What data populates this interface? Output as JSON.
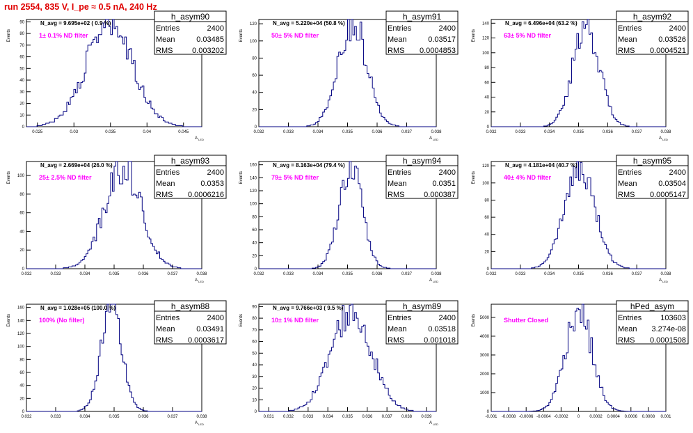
{
  "title": "run 2554,   835 V, I_pe ≈ 0.5 nA, 240 Hz",
  "colors": {
    "title": "#e00000",
    "histogram": "#000080",
    "filter_label": "#ff00ff"
  },
  "stat_labels": {
    "entries": "Entries",
    "mean": "Mean",
    "rms": "RMS"
  },
  "chart_data": [
    {
      "type": "histogram",
      "name": "h_asym90",
      "navg": "N_avg = 9.695e+02 ( 0.9 %)",
      "filter": "1± 0.1% ND filter",
      "stats": {
        "entries": "2400",
        "mean": "0.03485",
        "rms": "0.003202"
      },
      "xlabel": "A_LED",
      "ylabel": "Events",
      "xlim": [
        0.0235,
        0.0475
      ],
      "ylim": [
        0,
        92
      ],
      "xticks": [
        "0.025",
        "0.03",
        "0.035",
        "0.04",
        "0.045"
      ],
      "yticks": [
        "0",
        "10",
        "20",
        "30",
        "40",
        "50",
        "60",
        "70",
        "80",
        "90"
      ],
      "mu": 0.03485,
      "sigma": 0.0032,
      "peak": 88
    },
    {
      "type": "histogram",
      "name": "h_asym91",
      "navg": "N_avg = 5.220e+04 (50.8 %)",
      "filter": "50± 5% ND filter",
      "stats": {
        "entries": "2400",
        "mean": "0.03517",
        "rms": "0.0004853"
      },
      "xlabel": "A_LED",
      "ylabel": "Events",
      "xlim": [
        0.032,
        0.038
      ],
      "ylim": [
        0,
        125
      ],
      "xticks": [
        "0.032",
        "0.033",
        "0.034",
        "0.035",
        "0.036",
        "0.037",
        "0.038"
      ],
      "yticks": [
        "0",
        "20",
        "40",
        "60",
        "80",
        "100",
        "120"
      ],
      "mu": 0.03517,
      "sigma": 0.000485,
      "peak": 122
    },
    {
      "type": "histogram",
      "name": "h_asym92",
      "navg": "N_avg = 6.496e+04 (63.2 %)",
      "filter": "63± 5% ND filter",
      "stats": {
        "entries": "2400",
        "mean": "0.03526",
        "rms": "0.0004521"
      },
      "xlabel": "A_LED",
      "ylabel": "Events",
      "xlim": [
        0.032,
        0.038
      ],
      "ylim": [
        0,
        145
      ],
      "xticks": [
        "0.032",
        "0.033",
        "0.034",
        "0.035",
        "0.036",
        "0.037",
        "0.038"
      ],
      "yticks": [
        "0",
        "20",
        "40",
        "60",
        "80",
        "100",
        "120",
        "140"
      ],
      "mu": 0.03526,
      "sigma": 0.00045,
      "peak": 140
    },
    {
      "type": "histogram",
      "name": "h_asym93",
      "navg": "N_avg = 2.669e+04 (26.0 %)",
      "filter": "25± 2.5% ND filter",
      "stats": {
        "entries": "2400",
        "mean": "0.0353",
        "rms": "0.0006216"
      },
      "xlabel": "A_LED",
      "ylabel": "Events",
      "xlim": [
        0.032,
        0.038
      ],
      "ylim": [
        0,
        115
      ],
      "xticks": [
        "0.032",
        "0.033",
        "0.034",
        "0.035",
        "0.036",
        "0.037",
        "0.038"
      ],
      "yticks": [
        "0",
        "20",
        "40",
        "60",
        "80",
        "100"
      ],
      "mu": 0.0353,
      "sigma": 0.00062,
      "peak": 110
    },
    {
      "type": "histogram",
      "name": "h_asym94",
      "navg": "N_avg = 8.163e+04 (79.4 %)",
      "filter": "79± 5% ND filter",
      "stats": {
        "entries": "2400",
        "mean": "0.0351",
        "rms": "0.000387"
      },
      "xlabel": "A_LED",
      "ylabel": "Events",
      "xlim": [
        0.032,
        0.038
      ],
      "ylim": [
        0,
        165
      ],
      "xticks": [
        "0.032",
        "0.033",
        "0.034",
        "0.035",
        "0.036",
        "0.037",
        "0.038"
      ],
      "yticks": [
        "0",
        "20",
        "40",
        "60",
        "80",
        "100",
        "120",
        "140",
        "160"
      ],
      "mu": 0.0351,
      "sigma": 0.000387,
      "peak": 160
    },
    {
      "type": "histogram",
      "name": "h_asym95",
      "navg": "N_avg = 4.181e+04 (40.7 %)",
      "filter": "40± 4% ND filter",
      "stats": {
        "entries": "2400",
        "mean": "0.03504",
        "rms": "0.0005147"
      },
      "xlabel": "A_LED",
      "ylabel": "Events",
      "xlim": [
        0.032,
        0.038
      ],
      "ylim": [
        0,
        125
      ],
      "xticks": [
        "0.032",
        "0.033",
        "0.034",
        "0.035",
        "0.036",
        "0.037",
        "0.038"
      ],
      "yticks": [
        "0",
        "20",
        "40",
        "60",
        "80",
        "100",
        "120"
      ],
      "mu": 0.03504,
      "sigma": 0.000515,
      "peak": 120
    },
    {
      "type": "histogram",
      "name": "h_asym88",
      "navg": "N_avg = 1.028e+05 (100.0 %)",
      "filter": "100% (No filter)",
      "stats": {
        "entries": "2400",
        "mean": "0.03491",
        "rms": "0.0003617"
      },
      "xlabel": "A_LED",
      "ylabel": "Events",
      "xlim": [
        0.032,
        0.038
      ],
      "ylim": [
        0,
        165
      ],
      "xticks": [
        "0.032",
        "0.033",
        "0.034",
        "0.035",
        "0.036",
        "0.037",
        "0.038"
      ],
      "yticks": [
        "0",
        "20",
        "40",
        "60",
        "80",
        "100",
        "120",
        "140",
        "160"
      ],
      "mu": 0.03491,
      "sigma": 0.00036,
      "peak": 158
    },
    {
      "type": "histogram",
      "name": "h_asym89",
      "navg": "N_avg = 9.766e+03 ( 9.5 %)",
      "filter": "10± 1% ND filter",
      "stats": {
        "entries": "2400",
        "mean": "0.03518",
        "rms": "0.001018"
      },
      "xlabel": "A_LED",
      "ylabel": "Events",
      "xlim": [
        0.0305,
        0.0395
      ],
      "ylim": [
        0,
        92
      ],
      "xticks": [
        "0.031",
        "0.032",
        "0.033",
        "0.034",
        "0.035",
        "0.036",
        "0.037",
        "0.038",
        "0.039"
      ],
      "yticks": [
        "0",
        "10",
        "20",
        "30",
        "40",
        "50",
        "60",
        "70",
        "80",
        "90"
      ],
      "mu": 0.03518,
      "sigma": 0.00102,
      "peak": 86
    },
    {
      "type": "histogram",
      "name": "hPed_asym",
      "navg": "",
      "filter": "Shutter Closed",
      "stats": {
        "entries": "103603",
        "mean": "3.274e-08",
        "rms": "0.0001508"
      },
      "xlabel": "",
      "ylabel": "Events",
      "xlim": [
        -0.001,
        0.001
      ],
      "ylim": [
        0,
        5700
      ],
      "xticks": [
        "-0.001",
        "-0.0008",
        "-0.0006",
        "-0.0004",
        "-0.0002",
        "0",
        "0.0002",
        "0.0004",
        "0.0006",
        "0.0008",
        "0.001"
      ],
      "yticks": [
        "0",
        "1000",
        "2000",
        "3000",
        "4000",
        "5000"
      ],
      "mu": 0.0,
      "sigma": 0.000151,
      "peak": 5450
    }
  ]
}
